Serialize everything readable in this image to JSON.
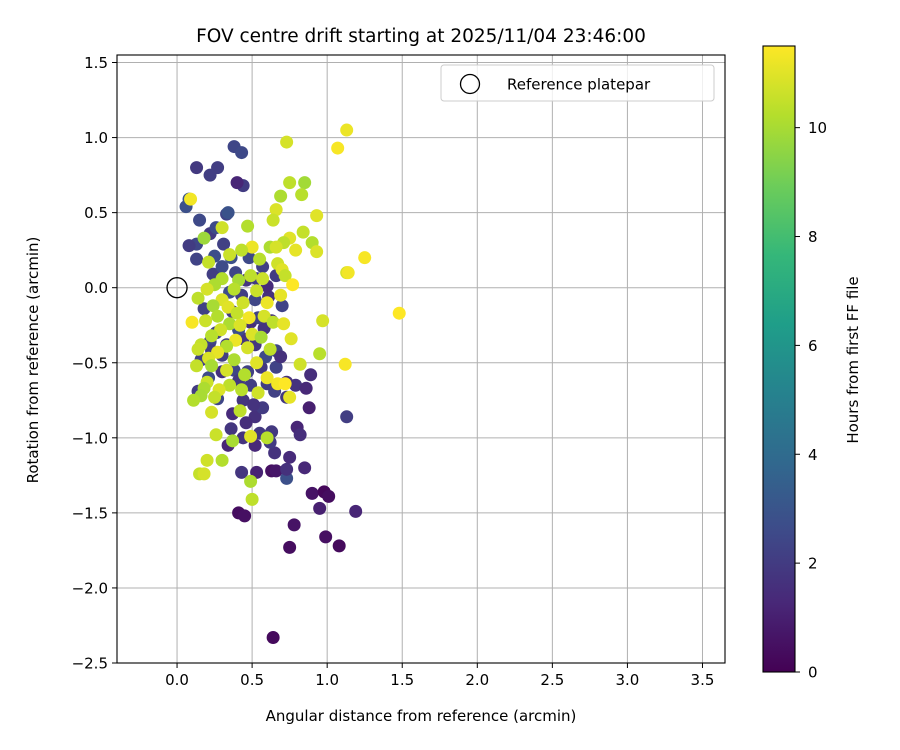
{
  "chart_data": {
    "type": "scatter",
    "title": "FOV centre drift starting at 2025/11/04 23:46:00",
    "xlabel": "Angular distance from reference (arcmin)",
    "ylabel": "Rotation from reference (arcmin)",
    "xlim": [
      -0.4,
      3.65
    ],
    "ylim": [
      -2.5,
      1.55
    ],
    "grid": true,
    "legend_position": "top-right",
    "xticks": [
      "0.0",
      "0.5",
      "1.0",
      "1.5",
      "2.0",
      "2.5",
      "3.0",
      "3.5"
    ],
    "yticks": [
      "−2.5",
      "−2.0",
      "−1.5",
      "−1.0",
      "−0.5",
      "0.0",
      "0.5",
      "1.0",
      "1.5"
    ],
    "xtick_values": [
      0.0,
      0.5,
      1.0,
      1.5,
      2.0,
      2.5,
      3.0,
      3.5
    ],
    "ytick_values": [
      -2.5,
      -2.0,
      -1.5,
      -1.0,
      -0.5,
      0.0,
      0.5,
      1.0,
      1.5
    ],
    "reference": {
      "label": "Reference platepar",
      "x": 0.0,
      "y": 0.0
    },
    "colorbar": {
      "label": "Hours from first FF file",
      "min": 0,
      "max": 11.5,
      "ticks": [
        "0",
        "2",
        "4",
        "6",
        "8",
        "10"
      ],
      "tick_values": [
        0,
        2,
        4,
        6,
        8,
        10
      ],
      "colormap": "viridis"
    },
    "points": [
      {
        "x": 0.64,
        "y": -2.33,
        "h": 0.3
      },
      {
        "x": 1.08,
        "y": -1.72,
        "h": 0.3
      },
      {
        "x": 0.75,
        "y": -1.73,
        "h": 0.4
      },
      {
        "x": 0.99,
        "y": -1.66,
        "h": 0.5
      },
      {
        "x": 0.78,
        "y": -1.58,
        "h": 0.6
      },
      {
        "x": 1.19,
        "y": -1.49,
        "h": 1.2
      },
      {
        "x": 0.41,
        "y": -1.5,
        "h": 0.4
      },
      {
        "x": 0.45,
        "y": -1.52,
        "h": 0.5
      },
      {
        "x": 0.95,
        "y": -1.47,
        "h": 1.0
      },
      {
        "x": 0.9,
        "y": -1.37,
        "h": 0.6
      },
      {
        "x": 0.98,
        "y": -1.36,
        "h": 0.2
      },
      {
        "x": 1.01,
        "y": -1.39,
        "h": 0.4
      },
      {
        "x": 0.63,
        "y": -1.22,
        "h": 0.5
      },
      {
        "x": 0.66,
        "y": -1.22,
        "h": 0.7
      },
      {
        "x": 0.73,
        "y": -1.27,
        "h": 2.8
      },
      {
        "x": 0.73,
        "y": -1.21,
        "h": 1.6
      },
      {
        "x": 0.85,
        "y": -1.2,
        "h": 1.3
      },
      {
        "x": 0.43,
        "y": -1.23,
        "h": 1.8
      },
      {
        "x": 0.53,
        "y": -1.23,
        "h": 1.1
      },
      {
        "x": 0.75,
        "y": -1.13,
        "h": 1.4
      },
      {
        "x": 0.65,
        "y": -1.1,
        "h": 1.7
      },
      {
        "x": 0.34,
        "y": -1.05,
        "h": 1.2
      },
      {
        "x": 0.52,
        "y": -1.05,
        "h": 1.3
      },
      {
        "x": 0.62,
        "y": -1.03,
        "h": 2.0
      },
      {
        "x": 0.8,
        "y": -0.93,
        "h": 1.2
      },
      {
        "x": 0.82,
        "y": -0.98,
        "h": 1.5
      },
      {
        "x": 0.63,
        "y": -0.96,
        "h": 1.9
      },
      {
        "x": 0.52,
        "y": -0.86,
        "h": 1.6
      },
      {
        "x": 0.37,
        "y": -0.84,
        "h": 1.4
      },
      {
        "x": 0.57,
        "y": -0.8,
        "h": 2.0
      },
      {
        "x": 0.44,
        "y": -0.75,
        "h": 1.8
      },
      {
        "x": 0.27,
        "y": -0.74,
        "h": 2.4
      },
      {
        "x": 0.14,
        "y": -0.69,
        "h": 2.0
      },
      {
        "x": 0.88,
        "y": -0.8,
        "h": 1.0
      },
      {
        "x": 1.13,
        "y": -0.86,
        "h": 2.1
      },
      {
        "x": 0.65,
        "y": -0.69,
        "h": 2.2
      },
      {
        "x": 0.73,
        "y": -0.73,
        "h": 1.9
      },
      {
        "x": 0.79,
        "y": -0.65,
        "h": 1.7
      },
      {
        "x": 0.89,
        "y": -0.58,
        "h": 1.5
      },
      {
        "x": 0.86,
        "y": -0.67,
        "h": 1.3
      },
      {
        "x": 0.6,
        "y": -0.64,
        "h": 2.1
      },
      {
        "x": 0.73,
        "y": -0.63,
        "h": 1.6
      },
      {
        "x": 0.66,
        "y": -0.53,
        "h": 2.3
      },
      {
        "x": 0.56,
        "y": -0.53,
        "h": 1.9
      },
      {
        "x": 0.47,
        "y": -0.56,
        "h": 2.2
      },
      {
        "x": 0.38,
        "y": -0.55,
        "h": 2.4
      },
      {
        "x": 0.3,
        "y": -0.45,
        "h": 2.1
      },
      {
        "x": 0.22,
        "y": -0.36,
        "h": 2.3
      },
      {
        "x": 0.59,
        "y": -0.46,
        "h": 2.6
      },
      {
        "x": 0.66,
        "y": -0.42,
        "h": 2.4
      },
      {
        "x": 0.33,
        "y": -0.38,
        "h": 2.0
      },
      {
        "x": 0.44,
        "y": -0.34,
        "h": 1.8
      },
      {
        "x": 0.58,
        "y": -0.27,
        "h": 1.7
      },
      {
        "x": 0.49,
        "y": -0.23,
        "h": 1.5
      },
      {
        "x": 0.37,
        "y": -0.16,
        "h": 2.0
      },
      {
        "x": 0.54,
        "y": -0.2,
        "h": 2.2
      },
      {
        "x": 0.61,
        "y": -0.06,
        "h": 1.6
      },
      {
        "x": 0.6,
        "y": 0.01,
        "h": 1.4
      },
      {
        "x": 0.53,
        "y": 0.06,
        "h": 2.0
      },
      {
        "x": 0.39,
        "y": 0.1,
        "h": 2.4
      },
      {
        "x": 0.24,
        "y": 0.09,
        "h": 2.1
      },
      {
        "x": 0.3,
        "y": 0.14,
        "h": 2.6
      },
      {
        "x": 0.36,
        "y": 0.2,
        "h": 2.8
      },
      {
        "x": 0.48,
        "y": 0.2,
        "h": 2.5
      },
      {
        "x": 0.57,
        "y": 0.14,
        "h": 2.2
      },
      {
        "x": 0.25,
        "y": 0.21,
        "h": 2.7
      },
      {
        "x": 0.13,
        "y": 0.19,
        "h": 2.3
      },
      {
        "x": 0.13,
        "y": 0.29,
        "h": 2.4
      },
      {
        "x": 0.08,
        "y": 0.28,
        "h": 2.0
      },
      {
        "x": 0.22,
        "y": 0.36,
        "h": 1.9
      },
      {
        "x": 0.31,
        "y": 0.29,
        "h": 2.2
      },
      {
        "x": 0.26,
        "y": 0.4,
        "h": 2.6
      },
      {
        "x": 0.15,
        "y": 0.45,
        "h": 2.5
      },
      {
        "x": 0.06,
        "y": 0.54,
        "h": 2.8
      },
      {
        "x": 0.08,
        "y": 0.59,
        "h": 3.0
      },
      {
        "x": 0.33,
        "y": 0.49,
        "h": 2.3
      },
      {
        "x": 0.34,
        "y": 0.5,
        "h": 2.9
      },
      {
        "x": 0.44,
        "y": 0.68,
        "h": 2.0
      },
      {
        "x": 0.4,
        "y": 0.7,
        "h": 1.2
      },
      {
        "x": 0.13,
        "y": 0.8,
        "h": 1.9
      },
      {
        "x": 0.27,
        "y": 0.8,
        "h": 2.1
      },
      {
        "x": 0.22,
        "y": 0.75,
        "h": 2.1
      },
      {
        "x": 0.38,
        "y": 0.94,
        "h": 2.4
      },
      {
        "x": 0.43,
        "y": 0.9,
        "h": 2.5
      },
      {
        "x": 0.18,
        "y": -0.14,
        "h": 2.2
      },
      {
        "x": 0.23,
        "y": -0.42,
        "h": 2.0
      },
      {
        "x": 0.3,
        "y": -0.56,
        "h": 1.6
      },
      {
        "x": 0.41,
        "y": -0.62,
        "h": 1.9
      },
      {
        "x": 0.49,
        "y": -0.65,
        "h": 2.1
      },
      {
        "x": 0.51,
        "y": -0.78,
        "h": 1.7
      },
      {
        "x": 0.46,
        "y": -0.9,
        "h": 1.5
      },
      {
        "x": 0.36,
        "y": -0.94,
        "h": 1.8
      },
      {
        "x": 0.44,
        "y": -1.0,
        "h": 1.7
      },
      {
        "x": 0.55,
        "y": -0.97,
        "h": 1.9
      },
      {
        "x": 0.69,
        "y": -0.46,
        "h": 1.6
      },
      {
        "x": 0.52,
        "y": -0.38,
        "h": 1.8
      },
      {
        "x": 0.63,
        "y": -0.22,
        "h": 1.7
      },
      {
        "x": 0.7,
        "y": -0.12,
        "h": 2.3
      },
      {
        "x": 0.43,
        "y": -0.05,
        "h": 2.1
      },
      {
        "x": 0.35,
        "y": -0.03,
        "h": 2.6
      },
      {
        "x": 0.52,
        "y": -0.08,
        "h": 2.4
      },
      {
        "x": 0.66,
        "y": 0.08,
        "h": 2.0
      },
      {
        "x": 0.46,
        "y": 0.05,
        "h": 1.8
      },
      {
        "x": 0.41,
        "y": -0.28,
        "h": 2.7
      },
      {
        "x": 0.26,
        "y": -0.3,
        "h": 2.3
      },
      {
        "x": 0.21,
        "y": -0.6,
        "h": 2.6
      },
      {
        "x": 0.16,
        "y": -0.48,
        "h": 2.2
      },
      {
        "x": 0.73,
        "y": 0.97,
        "h": 10.8
      },
      {
        "x": 1.13,
        "y": 1.05,
        "h": 11.2
      },
      {
        "x": 1.07,
        "y": 0.93,
        "h": 11.4
      },
      {
        "x": 0.75,
        "y": 0.7,
        "h": 10.4
      },
      {
        "x": 0.85,
        "y": 0.7,
        "h": 9.9
      },
      {
        "x": 0.83,
        "y": 0.62,
        "h": 10.3
      },
      {
        "x": 0.69,
        "y": 0.61,
        "h": 10.1
      },
      {
        "x": 0.09,
        "y": 0.59,
        "h": 11.3
      },
      {
        "x": 0.66,
        "y": 0.52,
        "h": 10.9
      },
      {
        "x": 0.93,
        "y": 0.48,
        "h": 11.0
      },
      {
        "x": 0.64,
        "y": 0.45,
        "h": 10.6
      },
      {
        "x": 0.47,
        "y": 0.41,
        "h": 10.2
      },
      {
        "x": 0.3,
        "y": 0.4,
        "h": 10.7
      },
      {
        "x": 0.84,
        "y": 0.37,
        "h": 10.5
      },
      {
        "x": 0.18,
        "y": 0.33,
        "h": 9.8
      },
      {
        "x": 0.75,
        "y": 0.33,
        "h": 11.0
      },
      {
        "x": 0.71,
        "y": 0.3,
        "h": 10.4
      },
      {
        "x": 0.9,
        "y": 0.3,
        "h": 10.2
      },
      {
        "x": 0.62,
        "y": 0.27,
        "h": 10.1
      },
      {
        "x": 0.66,
        "y": 0.27,
        "h": 10.8
      },
      {
        "x": 0.79,
        "y": 0.25,
        "h": 11.1
      },
      {
        "x": 0.93,
        "y": 0.24,
        "h": 10.9
      },
      {
        "x": 0.5,
        "y": 0.27,
        "h": 11.2
      },
      {
        "x": 0.43,
        "y": 0.25,
        "h": 10.4
      },
      {
        "x": 1.25,
        "y": 0.2,
        "h": 11.4
      },
      {
        "x": 0.21,
        "y": 0.17,
        "h": 10.5
      },
      {
        "x": 0.35,
        "y": 0.22,
        "h": 10.6
      },
      {
        "x": 0.55,
        "y": 0.19,
        "h": 10.3
      },
      {
        "x": 0.67,
        "y": 0.16,
        "h": 10.7
      },
      {
        "x": 0.7,
        "y": 0.12,
        "h": 11.0
      },
      {
        "x": 1.13,
        "y": 0.1,
        "h": 10.8
      },
      {
        "x": 1.14,
        "y": 0.1,
        "h": 11.3
      },
      {
        "x": 0.3,
        "y": 0.06,
        "h": 10.2
      },
      {
        "x": 0.72,
        "y": 0.08,
        "h": 10.5
      },
      {
        "x": 0.41,
        "y": 0.05,
        "h": 10.0
      },
      {
        "x": 0.49,
        "y": 0.08,
        "h": 10.4
      },
      {
        "x": 0.57,
        "y": 0.06,
        "h": 10.6
      },
      {
        "x": 0.77,
        "y": 0.02,
        "h": 11.5
      },
      {
        "x": 0.25,
        "y": 0.02,
        "h": 10.1
      },
      {
        "x": 0.2,
        "y": -0.01,
        "h": 10.8
      },
      {
        "x": 0.38,
        "y": -0.01,
        "h": 10.3
      },
      {
        "x": 0.53,
        "y": -0.02,
        "h": 10.6
      },
      {
        "x": 0.69,
        "y": -0.05,
        "h": 11.1
      },
      {
        "x": 0.14,
        "y": -0.07,
        "h": 10.4
      },
      {
        "x": 0.3,
        "y": -0.08,
        "h": 10.9
      },
      {
        "x": 0.44,
        "y": -0.1,
        "h": 10.7
      },
      {
        "x": 0.6,
        "y": -0.1,
        "h": 11.2
      },
      {
        "x": 0.24,
        "y": -0.12,
        "h": 10.0
      },
      {
        "x": 0.34,
        "y": -0.13,
        "h": 11.0
      },
      {
        "x": 0.4,
        "y": -0.17,
        "h": 10.5
      },
      {
        "x": 0.58,
        "y": -0.19,
        "h": 10.8
      },
      {
        "x": 0.27,
        "y": -0.19,
        "h": 10.2
      },
      {
        "x": 0.48,
        "y": -0.2,
        "h": 11.3
      },
      {
        "x": 0.19,
        "y": -0.22,
        "h": 10.6
      },
      {
        "x": 0.35,
        "y": -0.24,
        "h": 10.1
      },
      {
        "x": 0.42,
        "y": -0.25,
        "h": 10.9
      },
      {
        "x": 0.1,
        "y": -0.23,
        "h": 11.4
      },
      {
        "x": 0.64,
        "y": -0.23,
        "h": 10.4
      },
      {
        "x": 0.71,
        "y": -0.24,
        "h": 11.1
      },
      {
        "x": 0.97,
        "y": -0.22,
        "h": 10.8
      },
      {
        "x": 1.48,
        "y": -0.17,
        "h": 11.5
      },
      {
        "x": 0.29,
        "y": -0.28,
        "h": 10.7
      },
      {
        "x": 0.23,
        "y": -0.32,
        "h": 10.3
      },
      {
        "x": 0.5,
        "y": -0.31,
        "h": 10.9
      },
      {
        "x": 0.56,
        "y": -0.33,
        "h": 10.0
      },
      {
        "x": 0.39,
        "y": -0.35,
        "h": 11.2
      },
      {
        "x": 0.76,
        "y": -0.34,
        "h": 11.0
      },
      {
        "x": 0.16,
        "y": -0.38,
        "h": 10.5
      },
      {
        "x": 0.33,
        "y": -0.39,
        "h": 10.2
      },
      {
        "x": 0.47,
        "y": -0.4,
        "h": 10.8
      },
      {
        "x": 0.14,
        "y": -0.41,
        "h": 10.6
      },
      {
        "x": 0.27,
        "y": -0.43,
        "h": 11.1
      },
      {
        "x": 0.62,
        "y": -0.41,
        "h": 10.4
      },
      {
        "x": 0.95,
        "y": -0.44,
        "h": 10.3
      },
      {
        "x": 0.21,
        "y": -0.47,
        "h": 10.9
      },
      {
        "x": 0.38,
        "y": -0.48,
        "h": 10.1
      },
      {
        "x": 0.53,
        "y": -0.5,
        "h": 11.0
      },
      {
        "x": 0.82,
        "y": -0.51,
        "h": 10.7
      },
      {
        "x": 1.12,
        "y": -0.51,
        "h": 11.4
      },
      {
        "x": 0.13,
        "y": -0.52,
        "h": 10.5
      },
      {
        "x": 0.23,
        "y": -0.52,
        "h": 10.0
      },
      {
        "x": 0.33,
        "y": -0.55,
        "h": 10.8
      },
      {
        "x": 0.45,
        "y": -0.58,
        "h": 10.2
      },
      {
        "x": 0.6,
        "y": -0.6,
        "h": 11.2
      },
      {
        "x": 0.2,
        "y": -0.63,
        "h": 10.6
      },
      {
        "x": 0.35,
        "y": -0.65,
        "h": 10.4
      },
      {
        "x": 0.67,
        "y": -0.64,
        "h": 11.3
      },
      {
        "x": 0.18,
        "y": -0.67,
        "h": 10.1
      },
      {
        "x": 0.28,
        "y": -0.68,
        "h": 10.9
      },
      {
        "x": 0.43,
        "y": -0.68,
        "h": 10.3
      },
      {
        "x": 0.54,
        "y": -0.7,
        "h": 10.7
      },
      {
        "x": 0.16,
        "y": -0.72,
        "h": 10.0
      },
      {
        "x": 0.25,
        "y": -0.73,
        "h": 10.5
      },
      {
        "x": 0.75,
        "y": -0.73,
        "h": 11.1
      },
      {
        "x": 0.11,
        "y": -0.75,
        "h": 10.2
      },
      {
        "x": 0.23,
        "y": -0.83,
        "h": 10.8
      },
      {
        "x": 0.42,
        "y": -0.82,
        "h": 10.4
      },
      {
        "x": 0.26,
        "y": -0.98,
        "h": 10.6
      },
      {
        "x": 0.37,
        "y": -1.02,
        "h": 10.0
      },
      {
        "x": 0.49,
        "y": -0.99,
        "h": 11.0
      },
      {
        "x": 0.6,
        "y": -1.0,
        "h": 10.3
      },
      {
        "x": 0.2,
        "y": -1.15,
        "h": 10.7
      },
      {
        "x": 0.3,
        "y": -1.15,
        "h": 10.2
      },
      {
        "x": 0.15,
        "y": -1.24,
        "h": 10.5
      },
      {
        "x": 0.18,
        "y": -1.24,
        "h": 10.8
      },
      {
        "x": 0.49,
        "y": -1.29,
        "h": 10.1
      },
      {
        "x": 0.5,
        "y": -1.41,
        "h": 10.4
      },
      {
        "x": 0.72,
        "y": -0.64,
        "h": 11.5
      }
    ]
  }
}
